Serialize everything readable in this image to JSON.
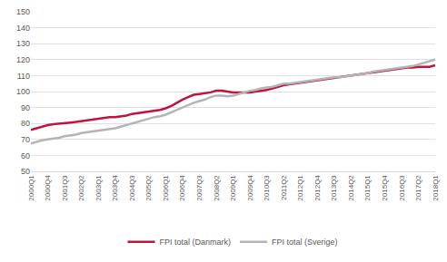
{
  "chart_data": {
    "type": "line",
    "categories": [
      "2000Q1",
      null,
      null,
      "2000Q4",
      null,
      null,
      "2001Q3",
      null,
      null,
      "2002Q2",
      null,
      null,
      "2003Q1",
      null,
      null,
      "2003Q4",
      null,
      null,
      "2004Q3",
      null,
      null,
      "2005Q2",
      null,
      null,
      "2006Q1",
      null,
      null,
      "2006Q4",
      null,
      null,
      "2007Q3",
      null,
      null,
      "2008Q2",
      null,
      null,
      "2009Q1",
      null,
      null,
      "2009Q4",
      null,
      null,
      "2010Q3",
      null,
      null,
      "2011Q2",
      null,
      null,
      "2012Q1",
      null,
      null,
      "2012Q4",
      null,
      null,
      "2013Q3",
      null,
      null,
      "2014Q2",
      null,
      null,
      "2015Q1",
      null,
      null,
      "2015Q4",
      null,
      null,
      "2016Q3",
      null,
      null,
      "2017Q2",
      null,
      null,
      "2018Q1"
    ],
    "series": [
      {
        "name": "FPI total (Danmark)",
        "color": "#c0143c",
        "values": [
          76.0,
          77.0,
          78.0,
          79.0,
          79.5,
          80.0,
          80.3,
          80.6,
          81.0,
          81.5,
          82.0,
          82.5,
          83.0,
          83.5,
          84.0,
          84.0,
          84.3,
          85.0,
          86.0,
          86.5,
          87.0,
          87.5,
          88.0,
          88.5,
          89.5,
          91.0,
          93.0,
          95.0,
          96.5,
          98.0,
          98.5,
          99.0,
          99.5,
          100.5,
          100.5,
          100.0,
          99.5,
          99.5,
          99.5,
          99.5,
          100.0,
          100.5,
          101.0,
          102.0,
          103.0,
          104.0,
          104.5,
          105.0,
          105.5,
          106.0,
          106.5,
          107.0,
          107.5,
          108.0,
          108.5,
          109.0,
          109.5,
          110.0,
          110.5,
          111.0,
          111.5,
          112.0,
          112.5,
          113.0,
          113.5,
          114.0,
          114.5,
          115.0,
          115.0,
          115.5,
          115.5,
          115.5,
          116.5
        ]
      },
      {
        "name": "FPI total (Sverige)",
        "color": "#b4b4b4",
        "values": [
          67.5,
          68.5,
          69.5,
          70.0,
          70.5,
          71.0,
          72.0,
          72.5,
          73.0,
          74.0,
          74.5,
          75.0,
          75.5,
          76.0,
          76.5,
          77.0,
          78.0,
          79.0,
          80.0,
          81.0,
          82.0,
          83.0,
          84.0,
          84.5,
          85.5,
          87.0,
          88.5,
          90.0,
          91.5,
          93.0,
          94.0,
          95.0,
          96.5,
          97.5,
          97.5,
          97.0,
          97.5,
          98.5,
          99.5,
          100.5,
          101.0,
          102.0,
          102.5,
          103.0,
          104.0,
          105.0,
          105.0,
          105.5,
          106.0,
          106.5,
          107.0,
          107.5,
          108.0,
          108.5,
          109.0,
          109.0,
          109.5,
          110.0,
          110.5,
          111.0,
          111.5,
          112.5,
          113.0,
          113.5,
          114.0,
          114.5,
          115.0,
          115.5,
          116.0,
          117.0,
          118.0,
          119.0,
          120.0
        ]
      }
    ],
    "ylim": [
      50,
      150
    ],
    "yticks": [
      50,
      60,
      70,
      80,
      90,
      100,
      110,
      120,
      130,
      140,
      150
    ],
    "grid": true,
    "legend": "bottom"
  }
}
